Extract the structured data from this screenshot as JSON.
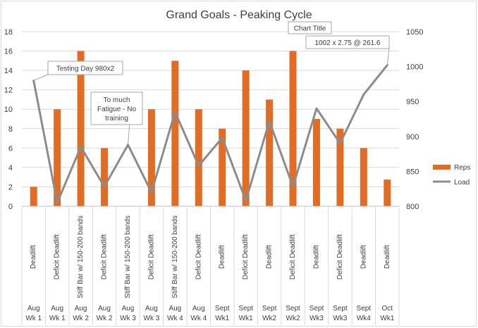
{
  "chart_data": {
    "type": "bar+line",
    "title": "Grand Goals - Peaking Cycle",
    "categories": [
      {
        "exercise": "Deadlift",
        "period": [
          "Aug",
          "Wk 1"
        ]
      },
      {
        "exercise": "Deficit Deadlift",
        "period": [
          "Aug",
          "Wk 1"
        ]
      },
      {
        "exercise": "Stiff Bar w/ 150-200 bands",
        "period": [
          "Aug",
          "Wk 2"
        ]
      },
      {
        "exercise": "Deficit Deadlift",
        "period": [
          "Aug",
          "Wk 2"
        ]
      },
      {
        "exercise": "Stiff Bar w/ 150-200 bands",
        "period": [
          "Aug",
          "Wk 3"
        ]
      },
      {
        "exercise": "Deficit Deadlift",
        "period": [
          "Aug",
          "Wk 3"
        ]
      },
      {
        "exercise": "Stiff Bar w/ 150-200 bands",
        "period": [
          "Aug",
          "Wk 4"
        ]
      },
      {
        "exercise": "Deficit Deadlift",
        "period": [
          "Aug",
          "Wk 4"
        ]
      },
      {
        "exercise": "Deadlift",
        "period": [
          "Sept",
          "Wk1"
        ]
      },
      {
        "exercise": "Deficit Deadlift",
        "period": [
          "Sept",
          "Wk1"
        ]
      },
      {
        "exercise": "Deadlift",
        "period": [
          "Sept",
          "Wk2"
        ]
      },
      {
        "exercise": "Deficit Deadlift",
        "period": [
          "Sept",
          "Wk2"
        ]
      },
      {
        "exercise": "Deadlift",
        "period": [
          "Sept",
          "Wk3"
        ]
      },
      {
        "exercise": "Deficit Deadlift",
        "period": [
          "Sept",
          "Wk3"
        ]
      },
      {
        "exercise": "Deadlift",
        "period": [
          "Sept",
          "Wk4"
        ]
      },
      {
        "exercise": "Deadlift",
        "period": [
          "Oct",
          "Wk1"
        ]
      }
    ],
    "series": [
      {
        "name": "Reps",
        "type": "bar",
        "axis": "left",
        "color": "#e36c24",
        "values": [
          2,
          10,
          16,
          6,
          0,
          10,
          15,
          10,
          8,
          14,
          11,
          16,
          9,
          8,
          6,
          2.75
        ]
      },
      {
        "name": "Load",
        "type": "line",
        "axis": "right",
        "color": "#8c8c8c",
        "values": [
          980,
          805,
          885,
          828,
          888,
          820,
          935,
          858,
          898,
          808,
          922,
          828,
          940,
          890,
          960,
          1002
        ]
      }
    ],
    "y_left": {
      "min": 0,
      "max": 18,
      "ticks": [
        0,
        2,
        4,
        6,
        8,
        10,
        12,
        14,
        16,
        18
      ]
    },
    "y_right": {
      "min": 800,
      "max": 1050,
      "ticks": [
        800,
        850,
        900,
        950,
        1000,
        1050
      ]
    },
    "grid": true,
    "legend_position": "right",
    "annotations": [
      {
        "text": [
          "Testing Day 980x2"
        ],
        "category_index": 0,
        "series": "Load"
      },
      {
        "text": [
          "To much",
          "Fatigue - No",
          "training"
        ],
        "category_index": 4,
        "series": "Load"
      },
      {
        "text": [
          "Chart Title"
        ],
        "category_index": null,
        "series": null
      },
      {
        "text": [
          "1002 x 2.75 @ 261.6"
        ],
        "category_index": 15,
        "series": "Load"
      }
    ]
  }
}
